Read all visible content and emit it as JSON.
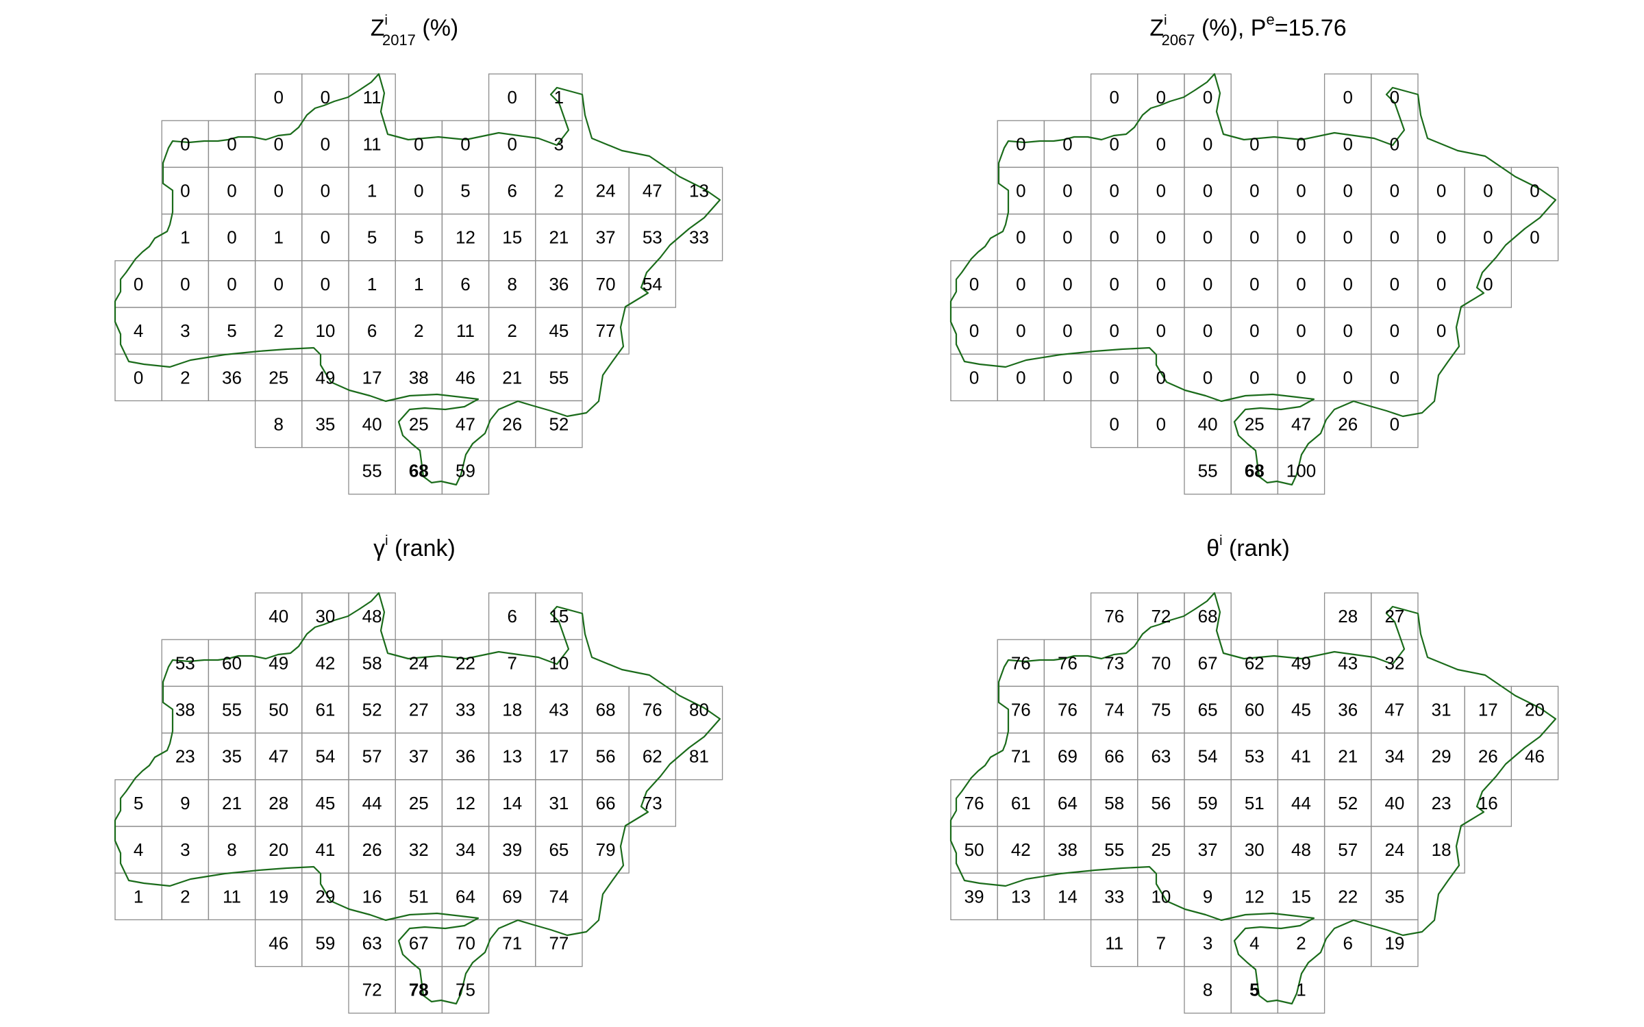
{
  "panels": [
    {
      "title": {
        "main": "Z",
        "sup": "i",
        "sub": "2017",
        "rest": " (%)",
        "extra": ""
      },
      "grid": [
        [
          null,
          null,
          null,
          0,
          0,
          11,
          null,
          null,
          0,
          1,
          null,
          null,
          null
        ],
        [
          null,
          0,
          0,
          0,
          0,
          11,
          0,
          0,
          0,
          3,
          null,
          null,
          null
        ],
        [
          null,
          0,
          0,
          0,
          0,
          1,
          0,
          5,
          6,
          2,
          24,
          47,
          13
        ],
        [
          null,
          1,
          0,
          1,
          0,
          5,
          5,
          12,
          15,
          21,
          37,
          53,
          33
        ],
        [
          0,
          0,
          0,
          0,
          0,
          1,
          1,
          6,
          8,
          36,
          70,
          54,
          null
        ],
        [
          4,
          3,
          5,
          2,
          10,
          6,
          2,
          11,
          2,
          45,
          77,
          null,
          null
        ],
        [
          0,
          2,
          36,
          25,
          49,
          17,
          38,
          46,
          21,
          55,
          null,
          null,
          null
        ],
        [
          null,
          null,
          null,
          8,
          35,
          40,
          25,
          47,
          26,
          52,
          null,
          null,
          null
        ],
        [
          null,
          null,
          null,
          null,
          null,
          55,
          68,
          59,
          null,
          null,
          null,
          null,
          null
        ]
      ]
    },
    {
      "title": {
        "main": "Z",
        "sup": "i",
        "sub": "2067",
        "rest": " (%), P",
        "extra_sup": "e",
        "extra": "=15.76"
      },
      "grid": [
        [
          null,
          null,
          null,
          0,
          0,
          0,
          null,
          null,
          0,
          0,
          null,
          null,
          null
        ],
        [
          null,
          0,
          0,
          0,
          0,
          0,
          0,
          0,
          0,
          0,
          null,
          null,
          null
        ],
        [
          null,
          0,
          0,
          0,
          0,
          0,
          0,
          0,
          0,
          0,
          0,
          0,
          0
        ],
        [
          null,
          0,
          0,
          0,
          0,
          0,
          0,
          0,
          0,
          0,
          0,
          0,
          0
        ],
        [
          0,
          0,
          0,
          0,
          0,
          0,
          0,
          0,
          0,
          0,
          0,
          0,
          null
        ],
        [
          0,
          0,
          0,
          0,
          0,
          0,
          0,
          0,
          0,
          0,
          0,
          null,
          null
        ],
        [
          0,
          0,
          0,
          0,
          0,
          0,
          0,
          0,
          0,
          0,
          null,
          null,
          null
        ],
        [
          null,
          null,
          null,
          0,
          0,
          40,
          25,
          47,
          26,
          0,
          null,
          null,
          null
        ],
        [
          null,
          null,
          null,
          null,
          null,
          55,
          68,
          100,
          null,
          null,
          null,
          null,
          null
        ]
      ]
    },
    {
      "title": {
        "main": "γ",
        "sup": "i",
        "sub": "",
        "rest": " (rank)",
        "extra": ""
      },
      "grid": [
        [
          null,
          null,
          null,
          40,
          30,
          48,
          null,
          null,
          6,
          15,
          null,
          null,
          null
        ],
        [
          null,
          53,
          60,
          49,
          42,
          58,
          24,
          22,
          7,
          10,
          null,
          null,
          null
        ],
        [
          null,
          38,
          55,
          50,
          61,
          52,
          27,
          33,
          18,
          43,
          68,
          76,
          80
        ],
        [
          null,
          23,
          35,
          47,
          54,
          57,
          37,
          36,
          13,
          17,
          56,
          62,
          81
        ],
        [
          5,
          9,
          21,
          28,
          45,
          44,
          25,
          12,
          14,
          31,
          66,
          73,
          null
        ],
        [
          4,
          3,
          8,
          20,
          41,
          26,
          32,
          34,
          39,
          65,
          79,
          null,
          null
        ],
        [
          1,
          2,
          11,
          19,
          29,
          16,
          51,
          64,
          69,
          74,
          null,
          null,
          null
        ],
        [
          null,
          null,
          null,
          46,
          59,
          63,
          67,
          70,
          71,
          77,
          null,
          null,
          null
        ],
        [
          null,
          null,
          null,
          null,
          null,
          72,
          78,
          75,
          null,
          null,
          null,
          null,
          null
        ]
      ]
    },
    {
      "title": {
        "main": "θ",
        "sup": "i",
        "sub": "",
        "rest": " (rank)",
        "extra": ""
      },
      "grid": [
        [
          null,
          null,
          null,
          76,
          72,
          68,
          null,
          null,
          28,
          27,
          null,
          null,
          null
        ],
        [
          null,
          76,
          76,
          73,
          70,
          67,
          62,
          49,
          43,
          32,
          null,
          null,
          null
        ],
        [
          null,
          76,
          76,
          74,
          75,
          65,
          60,
          45,
          36,
          47,
          31,
          17,
          20
        ],
        [
          null,
          71,
          69,
          66,
          63,
          54,
          53,
          41,
          21,
          34,
          29,
          26,
          46
        ],
        [
          76,
          61,
          64,
          58,
          56,
          59,
          51,
          44,
          52,
          40,
          23,
          16,
          null
        ],
        [
          50,
          42,
          38,
          55,
          25,
          37,
          30,
          48,
          57,
          24,
          18,
          null,
          null
        ],
        [
          39,
          13,
          14,
          33,
          10,
          9,
          12,
          15,
          22,
          35,
          null,
          null,
          null
        ],
        [
          null,
          null,
          null,
          11,
          7,
          3,
          4,
          2,
          6,
          19,
          null,
          null,
          null
        ],
        [
          null,
          null,
          null,
          null,
          null,
          8,
          5,
          1,
          null,
          null,
          null,
          null,
          null
        ]
      ]
    }
  ],
  "highlight_cell": {
    "row": 8,
    "col": 6
  },
  "colors": {
    "outline": "#1a6b1a",
    "grid": "#8c8c8c",
    "text": "#000000"
  }
}
